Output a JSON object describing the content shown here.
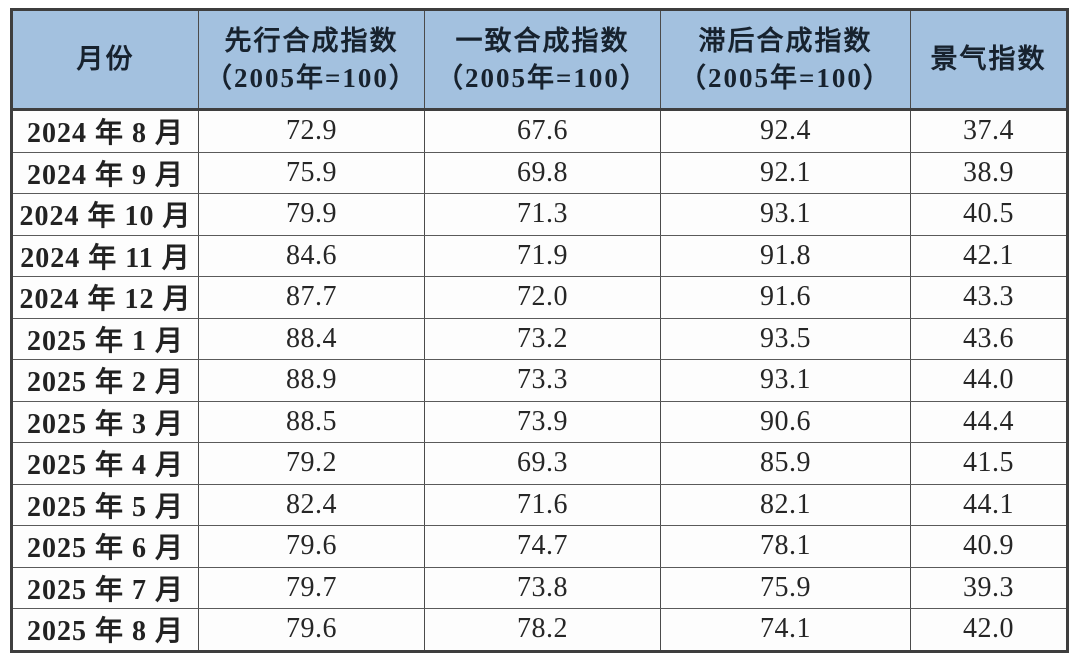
{
  "chart_data": {
    "type": "table",
    "title": "",
    "columns": [
      {
        "label": "月份",
        "sub": ""
      },
      {
        "label": "先行合成指数",
        "sub": "（2005年=100）"
      },
      {
        "label": "一致合成指数",
        "sub": "（2005年=100）"
      },
      {
        "label": "滞后合成指数",
        "sub": "（2005年=100）"
      },
      {
        "label": "景气指数",
        "sub": ""
      }
    ],
    "rows": [
      [
        "2024 年 8 月",
        "72.9",
        "67.6",
        "92.4",
        "37.4"
      ],
      [
        "2024 年 9 月",
        "75.9",
        "69.8",
        "92.1",
        "38.9"
      ],
      [
        "2024 年 10 月",
        "79.9",
        "71.3",
        "93.1",
        "40.5"
      ],
      [
        "2024 年 11 月",
        "84.6",
        "71.9",
        "91.8",
        "42.1"
      ],
      [
        "2024 年 12 月",
        "87.7",
        "72.0",
        "91.6",
        "43.3"
      ],
      [
        "2025 年 1 月",
        "88.4",
        "73.2",
        "93.5",
        "43.6"
      ],
      [
        "2025 年 2 月",
        "88.9",
        "73.3",
        "93.1",
        "44.0"
      ],
      [
        "2025 年 3 月",
        "88.5",
        "73.9",
        "90.6",
        "44.4"
      ],
      [
        "2025 年 4 月",
        "79.2",
        "69.3",
        "85.9",
        "41.5"
      ],
      [
        "2025 年 5 月",
        "82.4",
        "71.6",
        "82.1",
        "44.1"
      ],
      [
        "2025 年 6 月",
        "79.6",
        "74.7",
        "78.1",
        "40.9"
      ],
      [
        "2025 年 7 月",
        "79.7",
        "73.8",
        "75.9",
        "39.3"
      ],
      [
        "2025 年 8 月",
        "79.6",
        "78.2",
        "74.1",
        "42.0"
      ]
    ]
  },
  "colors": {
    "header_bg": "#a3c1df",
    "header_text": "#17222e",
    "body_text": "#262626",
    "outer_border": "#3e3e3e"
  }
}
